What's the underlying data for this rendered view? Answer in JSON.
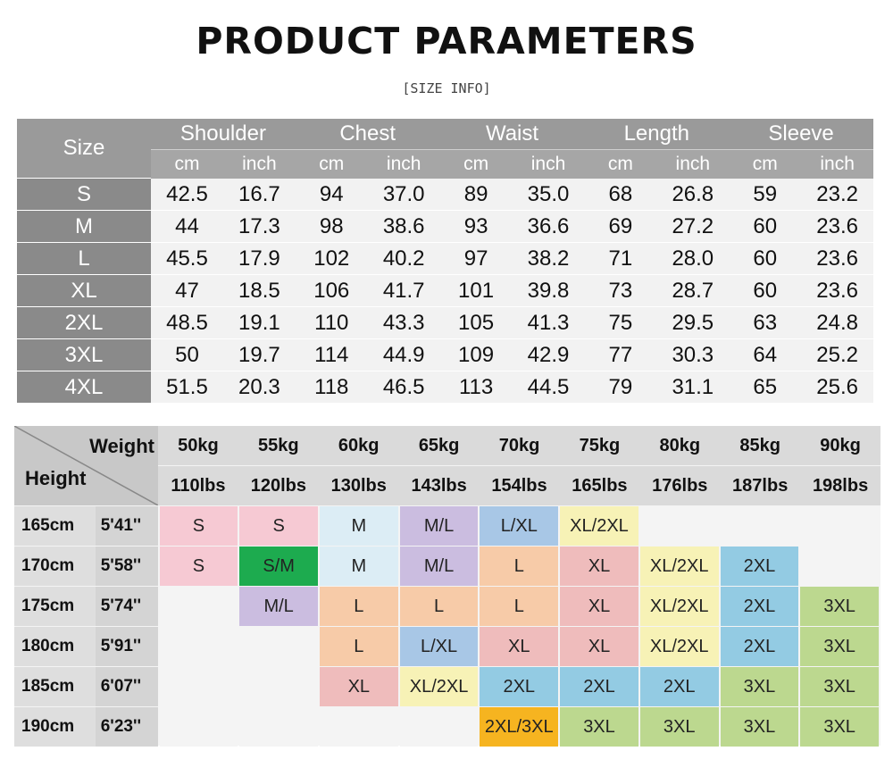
{
  "header": {
    "title": "PRODUCT PARAMETERS",
    "subtitle": "[SIZE INFO]"
  },
  "size_table": {
    "size_label": "Size",
    "metrics": [
      "Shoulder",
      "Chest",
      "Waist",
      "Length",
      "Sleeve"
    ],
    "units": [
      "cm",
      "inch"
    ],
    "rows": [
      {
        "size": "S",
        "values": [
          "42.5",
          "16.7",
          "94",
          "37.0",
          "89",
          "35.0",
          "68",
          "26.8",
          "59",
          "23.2"
        ]
      },
      {
        "size": "M",
        "values": [
          "44",
          "17.3",
          "98",
          "38.6",
          "93",
          "36.6",
          "69",
          "27.2",
          "60",
          "23.6"
        ]
      },
      {
        "size": "L",
        "values": [
          "45.5",
          "17.9",
          "102",
          "40.2",
          "97",
          "38.2",
          "71",
          "28.0",
          "60",
          "23.6"
        ]
      },
      {
        "size": "XL",
        "values": [
          "47",
          "18.5",
          "106",
          "41.7",
          "101",
          "39.8",
          "73",
          "28.7",
          "60",
          "23.6"
        ]
      },
      {
        "size": "2XL",
        "values": [
          "48.5",
          "19.1",
          "110",
          "43.3",
          "105",
          "41.3",
          "75",
          "29.5",
          "63",
          "24.8"
        ]
      },
      {
        "size": "3XL",
        "values": [
          "50",
          "19.7",
          "114",
          "44.9",
          "109",
          "42.9",
          "77",
          "30.3",
          "64",
          "25.2"
        ]
      },
      {
        "size": "4XL",
        "values": [
          "51.5",
          "20.3",
          "118",
          "46.5",
          "113",
          "44.5",
          "79",
          "31.1",
          "65",
          "25.6"
        ]
      }
    ]
  },
  "weight_height_chart": {
    "weight_label": "Weight",
    "height_label": "Height",
    "weights_kg": [
      "50kg",
      "55kg",
      "60kg",
      "65kg",
      "70kg",
      "75kg",
      "80kg",
      "85kg",
      "90kg"
    ],
    "weights_lbs": [
      "110lbs",
      "120lbs",
      "130lbs",
      "143lbs",
      "154lbs",
      "165lbs",
      "176lbs",
      "187lbs",
      "198lbs"
    ],
    "rows": [
      {
        "cm": "165cm",
        "ft": "5'41''",
        "cells": [
          "S",
          "S",
          "M",
          "M/L",
          "L/XL",
          "XL/2XL",
          "",
          "",
          ""
        ]
      },
      {
        "cm": "170cm",
        "ft": "5'58''",
        "cells": [
          "S",
          "S/M",
          "M",
          "M/L",
          "L",
          "XL",
          "XL/2XL",
          "2XL",
          ""
        ]
      },
      {
        "cm": "175cm",
        "ft": "5'74''",
        "cells": [
          "",
          "M/L",
          "L",
          "L",
          "L",
          "XL",
          "XL/2XL",
          "2XL",
          "3XL"
        ]
      },
      {
        "cm": "180cm",
        "ft": "5'91''",
        "cells": [
          "",
          "",
          "L",
          "L/XL",
          "XL",
          "XL",
          "XL/2XL",
          "2XL",
          "3XL"
        ]
      },
      {
        "cm": "185cm",
        "ft": "6'07''",
        "cells": [
          "",
          "",
          "XL",
          "XL/2XL",
          "2XL",
          "2XL",
          "2XL",
          "3XL",
          "3XL"
        ]
      },
      {
        "cm": "190cm",
        "ft": "6'23''",
        "cells": [
          "",
          "",
          "",
          "",
          "2XL/3XL",
          "3XL",
          "3XL",
          "3XL",
          "3XL"
        ]
      }
    ],
    "size_colors": {
      "S": "#f6c9d3",
      "S/M": "#1dab4f",
      "M": "#dcedf5",
      "M/L": "#cbbde0",
      "L": "#f7cba8",
      "L/XL": "#a8c7e6",
      "XL": "#efbcbc",
      "XL/2XL": "#f7f2b6",
      "2XL": "#93cbe3",
      "2XL/3XL": "#f6b420",
      "3XL": "#bcd88f",
      "empty": "#f4f4f4"
    }
  }
}
